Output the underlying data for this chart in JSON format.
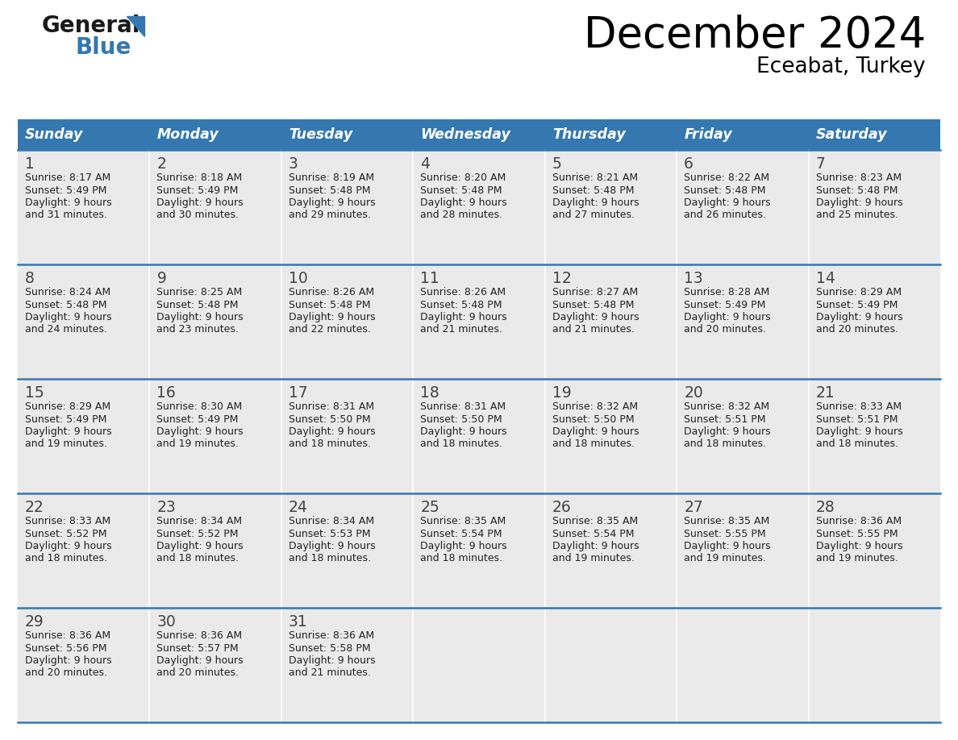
{
  "title": "December 2024",
  "subtitle": "Eceabat, Turkey",
  "header_color": "#3578B0",
  "header_text_color": "#FFFFFF",
  "cell_bg_odd": "#EAEAEA",
  "cell_bg_even": "#FFFFFF",
  "day_number_color": "#444444",
  "text_color": "#222222",
  "line_color": "#3578B0",
  "separator_color": "#AAAAAA",
  "days_of_week": [
    "Sunday",
    "Monday",
    "Tuesday",
    "Wednesday",
    "Thursday",
    "Friday",
    "Saturday"
  ],
  "weeks": [
    [
      {
        "day": 1,
        "sunrise": "8:17 AM",
        "sunset": "5:49 PM",
        "daylight_hours": 9,
        "daylight_minutes": 31
      },
      {
        "day": 2,
        "sunrise": "8:18 AM",
        "sunset": "5:49 PM",
        "daylight_hours": 9,
        "daylight_minutes": 30
      },
      {
        "day": 3,
        "sunrise": "8:19 AM",
        "sunset": "5:48 PM",
        "daylight_hours": 9,
        "daylight_minutes": 29
      },
      {
        "day": 4,
        "sunrise": "8:20 AM",
        "sunset": "5:48 PM",
        "daylight_hours": 9,
        "daylight_minutes": 28
      },
      {
        "day": 5,
        "sunrise": "8:21 AM",
        "sunset": "5:48 PM",
        "daylight_hours": 9,
        "daylight_minutes": 27
      },
      {
        "day": 6,
        "sunrise": "8:22 AM",
        "sunset": "5:48 PM",
        "daylight_hours": 9,
        "daylight_minutes": 26
      },
      {
        "day": 7,
        "sunrise": "8:23 AM",
        "sunset": "5:48 PM",
        "daylight_hours": 9,
        "daylight_minutes": 25
      }
    ],
    [
      {
        "day": 8,
        "sunrise": "8:24 AM",
        "sunset": "5:48 PM",
        "daylight_hours": 9,
        "daylight_minutes": 24
      },
      {
        "day": 9,
        "sunrise": "8:25 AM",
        "sunset": "5:48 PM",
        "daylight_hours": 9,
        "daylight_minutes": 23
      },
      {
        "day": 10,
        "sunrise": "8:26 AM",
        "sunset": "5:48 PM",
        "daylight_hours": 9,
        "daylight_minutes": 22
      },
      {
        "day": 11,
        "sunrise": "8:26 AM",
        "sunset": "5:48 PM",
        "daylight_hours": 9,
        "daylight_minutes": 21
      },
      {
        "day": 12,
        "sunrise": "8:27 AM",
        "sunset": "5:48 PM",
        "daylight_hours": 9,
        "daylight_minutes": 21
      },
      {
        "day": 13,
        "sunrise": "8:28 AM",
        "sunset": "5:49 PM",
        "daylight_hours": 9,
        "daylight_minutes": 20
      },
      {
        "day": 14,
        "sunrise": "8:29 AM",
        "sunset": "5:49 PM",
        "daylight_hours": 9,
        "daylight_minutes": 20
      }
    ],
    [
      {
        "day": 15,
        "sunrise": "8:29 AM",
        "sunset": "5:49 PM",
        "daylight_hours": 9,
        "daylight_minutes": 19
      },
      {
        "day": 16,
        "sunrise": "8:30 AM",
        "sunset": "5:49 PM",
        "daylight_hours": 9,
        "daylight_minutes": 19
      },
      {
        "day": 17,
        "sunrise": "8:31 AM",
        "sunset": "5:50 PM",
        "daylight_hours": 9,
        "daylight_minutes": 18
      },
      {
        "day": 18,
        "sunrise": "8:31 AM",
        "sunset": "5:50 PM",
        "daylight_hours": 9,
        "daylight_minutes": 18
      },
      {
        "day": 19,
        "sunrise": "8:32 AM",
        "sunset": "5:50 PM",
        "daylight_hours": 9,
        "daylight_minutes": 18
      },
      {
        "day": 20,
        "sunrise": "8:32 AM",
        "sunset": "5:51 PM",
        "daylight_hours": 9,
        "daylight_minutes": 18
      },
      {
        "day": 21,
        "sunrise": "8:33 AM",
        "sunset": "5:51 PM",
        "daylight_hours": 9,
        "daylight_minutes": 18
      }
    ],
    [
      {
        "day": 22,
        "sunrise": "8:33 AM",
        "sunset": "5:52 PM",
        "daylight_hours": 9,
        "daylight_minutes": 18
      },
      {
        "day": 23,
        "sunrise": "8:34 AM",
        "sunset": "5:52 PM",
        "daylight_hours": 9,
        "daylight_minutes": 18
      },
      {
        "day": 24,
        "sunrise": "8:34 AM",
        "sunset": "5:53 PM",
        "daylight_hours": 9,
        "daylight_minutes": 18
      },
      {
        "day": 25,
        "sunrise": "8:35 AM",
        "sunset": "5:54 PM",
        "daylight_hours": 9,
        "daylight_minutes": 18
      },
      {
        "day": 26,
        "sunrise": "8:35 AM",
        "sunset": "5:54 PM",
        "daylight_hours": 9,
        "daylight_minutes": 19
      },
      {
        "day": 27,
        "sunrise": "8:35 AM",
        "sunset": "5:55 PM",
        "daylight_hours": 9,
        "daylight_minutes": 19
      },
      {
        "day": 28,
        "sunrise": "8:36 AM",
        "sunset": "5:55 PM",
        "daylight_hours": 9,
        "daylight_minutes": 19
      }
    ],
    [
      {
        "day": 29,
        "sunrise": "8:36 AM",
        "sunset": "5:56 PM",
        "daylight_hours": 9,
        "daylight_minutes": 20
      },
      {
        "day": 30,
        "sunrise": "8:36 AM",
        "sunset": "5:57 PM",
        "daylight_hours": 9,
        "daylight_minutes": 20
      },
      {
        "day": 31,
        "sunrise": "8:36 AM",
        "sunset": "5:58 PM",
        "daylight_hours": 9,
        "daylight_minutes": 21
      },
      null,
      null,
      null,
      null
    ]
  ],
  "logo_general_color": "#1A1A1A",
  "logo_blue_color": "#3578B0",
  "figsize": [
    11.88,
    9.18
  ],
  "dpi": 100
}
